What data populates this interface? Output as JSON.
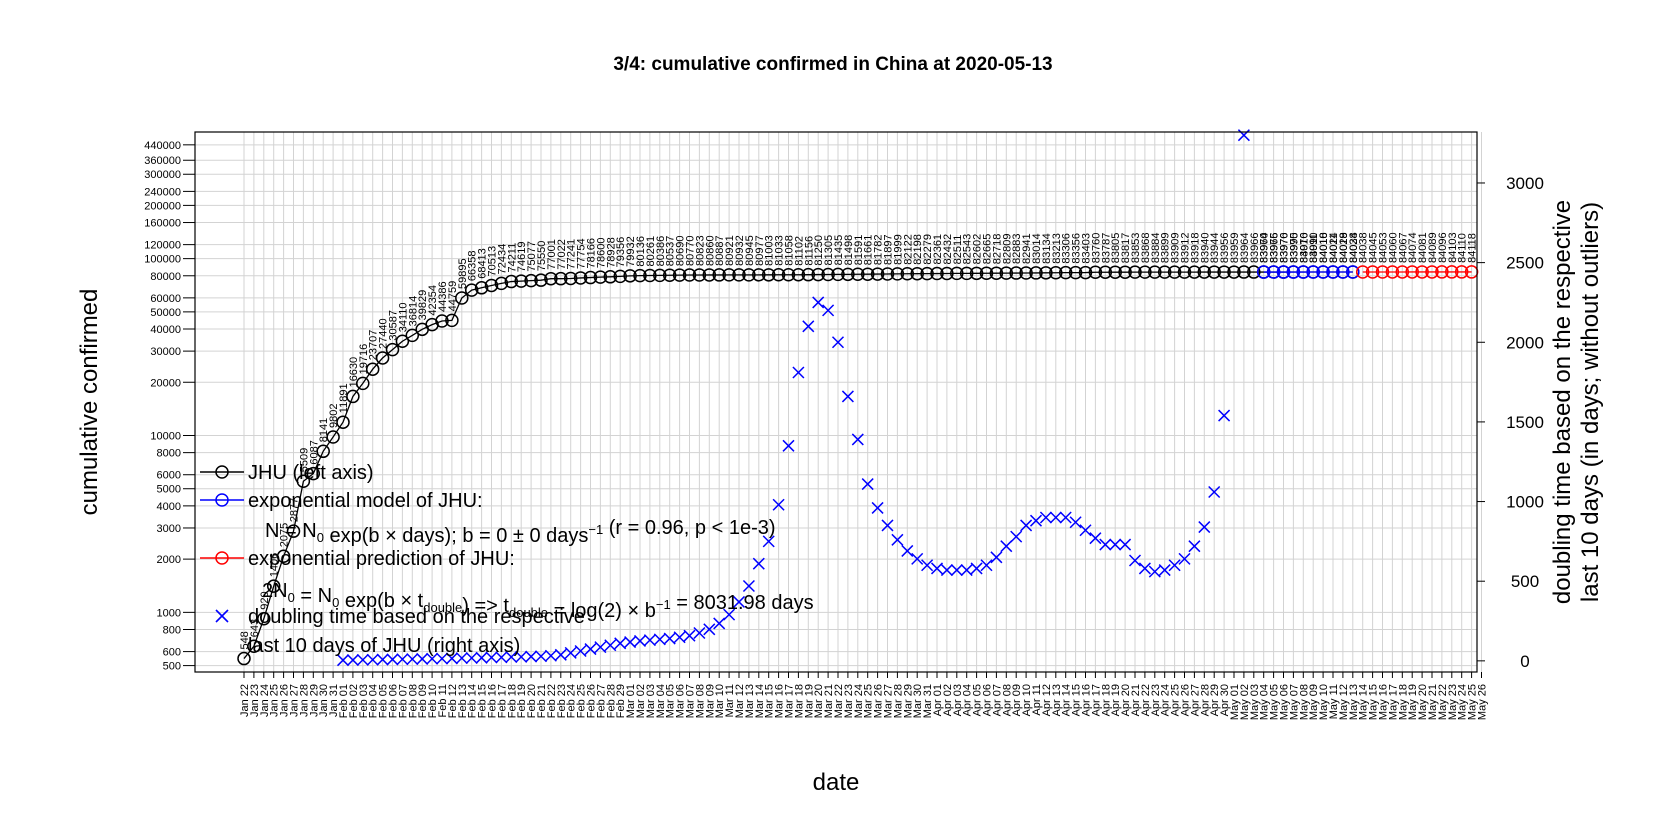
{
  "chart_data": {
    "type": "line",
    "title": "3/4: cumulative confirmed in China at 2020-05-13",
    "xlabel": "date",
    "ylabel": "cumulative confirmed",
    "y2label_line1": "doubling time based on the respective",
    "y2label_line2": "last 10 days (in days; without outliers)",
    "y_scale": "log",
    "ylim": [
      460,
      520000
    ],
    "y_ticks": [
      500,
      600,
      800,
      1000,
      2000,
      3000,
      4000,
      5000,
      6000,
      8000,
      10000,
      20000,
      30000,
      40000,
      50000,
      60000,
      80000,
      100000,
      120000,
      160000,
      200000,
      240000,
      300000,
      360000,
      440000
    ],
    "y2lim": [
      -70,
      3320
    ],
    "y2_ticks": [
      0,
      500,
      1000,
      1500,
      2000,
      2500,
      3000
    ],
    "x_dates": [
      "Jan 22",
      "Jan 23",
      "Jan 24",
      "Jan 25",
      "Jan 26",
      "Jan 27",
      "Jan 28",
      "Jan 29",
      "Jan 30",
      "Jan 31",
      "Feb 01",
      "Feb 02",
      "Feb 03",
      "Feb 04",
      "Feb 05",
      "Feb 06",
      "Feb 07",
      "Feb 08",
      "Feb 09",
      "Feb 10",
      "Feb 11",
      "Feb 12",
      "Feb 13",
      "Feb 14",
      "Feb 15",
      "Feb 16",
      "Feb 17",
      "Feb 18",
      "Feb 19",
      "Feb 20",
      "Feb 21",
      "Feb 22",
      "Feb 23",
      "Feb 24",
      "Feb 25",
      "Feb 26",
      "Feb 27",
      "Feb 28",
      "Feb 29",
      "Mar 01",
      "Mar 02",
      "Mar 03",
      "Mar 04",
      "Mar 05",
      "Mar 06",
      "Mar 07",
      "Mar 08",
      "Mar 09",
      "Mar 10",
      "Mar 11",
      "Mar 12",
      "Mar 13",
      "Mar 14",
      "Mar 15",
      "Mar 16",
      "Mar 17",
      "Mar 18",
      "Mar 19",
      "Mar 20",
      "Mar 21",
      "Mar 22",
      "Mar 23",
      "Mar 24",
      "Mar 25",
      "Mar 26",
      "Mar 27",
      "Mar 28",
      "Mar 29",
      "Mar 30",
      "Mar 31",
      "Apr 01",
      "Apr 02",
      "Apr 03",
      "Apr 04",
      "Apr 05",
      "Apr 06",
      "Apr 07",
      "Apr 08",
      "Apr 09",
      "Apr 10",
      "Apr 11",
      "Apr 12",
      "Apr 13",
      "Apr 14",
      "Apr 15",
      "Apr 16",
      "Apr 17",
      "Apr 18",
      "Apr 19",
      "Apr 20",
      "Apr 21",
      "Apr 22",
      "Apr 23",
      "Apr 24",
      "Apr 25",
      "Apr 26",
      "Apr 27",
      "Apr 28",
      "Apr 29",
      "Apr 30",
      "May 01",
      "May 02",
      "May 03",
      "May 04",
      "May 05",
      "May 06",
      "May 07",
      "May 08",
      "May 09",
      "May 10",
      "May 11",
      "May 12",
      "May 13",
      "May 14",
      "May 15",
      "May 16",
      "May 17",
      "May 18",
      "May 19",
      "May 20",
      "May 21",
      "May 22",
      "May 23",
      "May 24",
      "May 25",
      "May 26"
    ],
    "weekend_color": "#e69f00",
    "series": [
      {
        "name": "JHU (left axis)",
        "color": "#000000",
        "marker": "circle",
        "start_index": 0,
        "values": [
          548,
          643,
          920,
          1406,
          2075,
          2877,
          5509,
          6087,
          8141,
          9802,
          11891,
          16630,
          19716,
          23707,
          27440,
          30587,
          34110,
          36814,
          39829,
          42354,
          44386,
          44759,
          59895,
          66358,
          68413,
          70513,
          72434,
          74211,
          74619,
          75077,
          75550,
          77001,
          77022,
          77241,
          77754,
          78166,
          78600,
          78928,
          79356,
          79932,
          80136,
          80261,
          80386,
          80537,
          80690,
          80770,
          80823,
          80860,
          80887,
          80921,
          80932,
          80945,
          80977,
          81003,
          81033,
          81058,
          81102,
          81156,
          81250,
          81305,
          81435,
          81498,
          81591,
          81661,
          81782,
          81897,
          81999,
          82122,
          82198,
          82279,
          82361,
          82432,
          82511,
          82543,
          82602,
          82665,
          82718,
          82809,
          82883,
          82941,
          83014,
          83134,
          83213,
          83306,
          83356,
          83403,
          83760,
          83787,
          83805,
          83817,
          83853,
          83868,
          83884,
          83899,
          83909,
          83912,
          83918,
          83940,
          83944,
          83956,
          83959,
          83964,
          83966,
          83970,
          83975,
          83976,
          83990,
          84010,
          84011,
          84018,
          84024,
          84029,
          84038
        ]
      },
      {
        "name": "exponential model of JHU:",
        "color": "#0000ff",
        "marker": "circle",
        "start_index": 103,
        "values": [
          83964,
          83966,
          83970,
          83975,
          83976,
          83990,
          84010,
          84011,
          84018,
          84024
        ]
      },
      {
        "name": "exponential prediction of JHU:",
        "color": "#ff0000",
        "marker": "circle",
        "start_index": 113,
        "values": [
          84038,
          84045,
          84053,
          84060,
          84067,
          84074,
          84081,
          84089,
          84096,
          84103,
          84110,
          84118
        ]
      },
      {
        "name": "doubling time based on the respective",
        "axis": "right",
        "color": "#0000ff",
        "marker": "x",
        "start_index": 10,
        "values": [
          4,
          5,
          6,
          7,
          8,
          9,
          10,
          11,
          12,
          13,
          14,
          15,
          17,
          18,
          19,
          21,
          22,
          24,
          25,
          27,
          29,
          32,
          38,
          50,
          62,
          74,
          86,
          98,
          110,
          118,
          125,
          130,
          135,
          140,
          148,
          158,
          175,
          198,
          235,
          290,
          370,
          470,
          610,
          750,
          980,
          1350,
          1810,
          2100,
          2250,
          2200,
          2000,
          1660,
          1390,
          1110,
          960,
          850,
          760,
          690,
          640,
          600,
          580,
          570,
          570,
          570,
          580,
          600,
          650,
          720,
          780,
          850,
          880,
          900,
          900,
          900,
          870,
          820,
          770,
          730,
          730,
          730,
          630,
          580,
          560,
          570,
          600,
          640,
          720,
          840,
          1060,
          1540,
          null,
          3300
        ]
      }
    ],
    "legend": {
      "placement": "left",
      "items": [
        {
          "text": "JHU (left axis)",
          "color": "#000000",
          "marker": "circle"
        },
        {
          "text": "exponential model of JHU:",
          "color": "#0000ff",
          "marker": "circle"
        },
        {
          "text": "exponential prediction of JHU:",
          "color": "#ff0000",
          "marker": "circle"
        },
        {
          "text": "doubling time based on the respective",
          "color": "#0000ff",
          "marker": "x"
        }
      ],
      "formula1_text": "N = N₀ exp(b × days); b = 0 ± 0 days⁻¹ (r = 0.96, p < 1e-3)",
      "formula1_parts": [
        "N = N",
        "0",
        " exp(b × days); b = 0 ± 0 days",
        "−1",
        " (r = 0.96, p < 1e-3)"
      ],
      "formula2_text": "2N₀ = N₀ exp(b × t_double) => t_double = log(2) × b⁻¹ = 8031.98 days",
      "formula2_parts": [
        "2N",
        "0",
        " = N",
        "0",
        " exp(b × t",
        "double",
        ") => t",
        "double",
        " = log(2) × b",
        "−1",
        " = 8031.98 days"
      ],
      "item4_line2": "last 10 days of JHU (right axis)"
    }
  }
}
